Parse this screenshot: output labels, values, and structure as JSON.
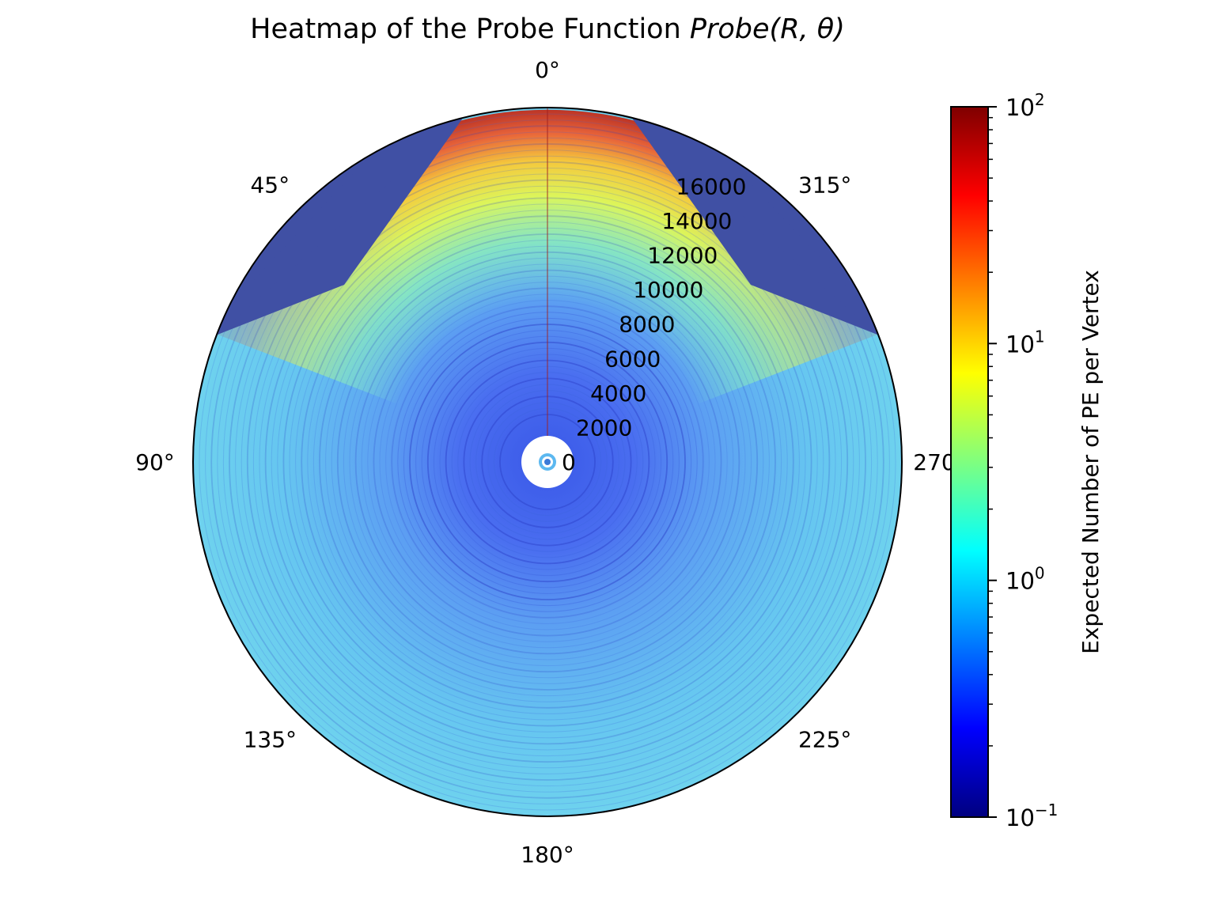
{
  "chart_data": {
    "type": "heatmap",
    "projection": "polar",
    "title_main": "Heatmap of the Probe Function ",
    "title_math": "Probe(R, θ)",
    "theta_zero_location": "top",
    "theta_direction": "counterclockwise",
    "theta_ticks": [
      "0°",
      "45°",
      "90°",
      "135°",
      "180°",
      "225°",
      "270°",
      "315°"
    ],
    "theta_tick_values_deg": [
      0,
      45,
      90,
      135,
      180,
      225,
      270,
      315
    ],
    "r_ticks": [
      "0",
      "2000",
      "4000",
      "6000",
      "8000",
      "10000",
      "12000",
      "14000",
      "16000"
    ],
    "r_tick_values": [
      0,
      2000,
      4000,
      6000,
      8000,
      10000,
      12000,
      14000,
      16000
    ],
    "rlim": [
      0,
      19000
    ],
    "colormap": "jet",
    "color_scale": "log",
    "clim": [
      0.1,
      100
    ],
    "colorbar": {
      "label": "Expected Number of PE per Vertex",
      "ticks": [
        {
          "base": "10",
          "exp": "2",
          "value": 100
        },
        {
          "base": "10",
          "exp": "1",
          "value": 10
        },
        {
          "base": "10",
          "exp": "0",
          "value": 1
        },
        {
          "base": "10",
          "exp": "−1",
          "value": 0.1
        }
      ],
      "location": "right"
    }
  }
}
